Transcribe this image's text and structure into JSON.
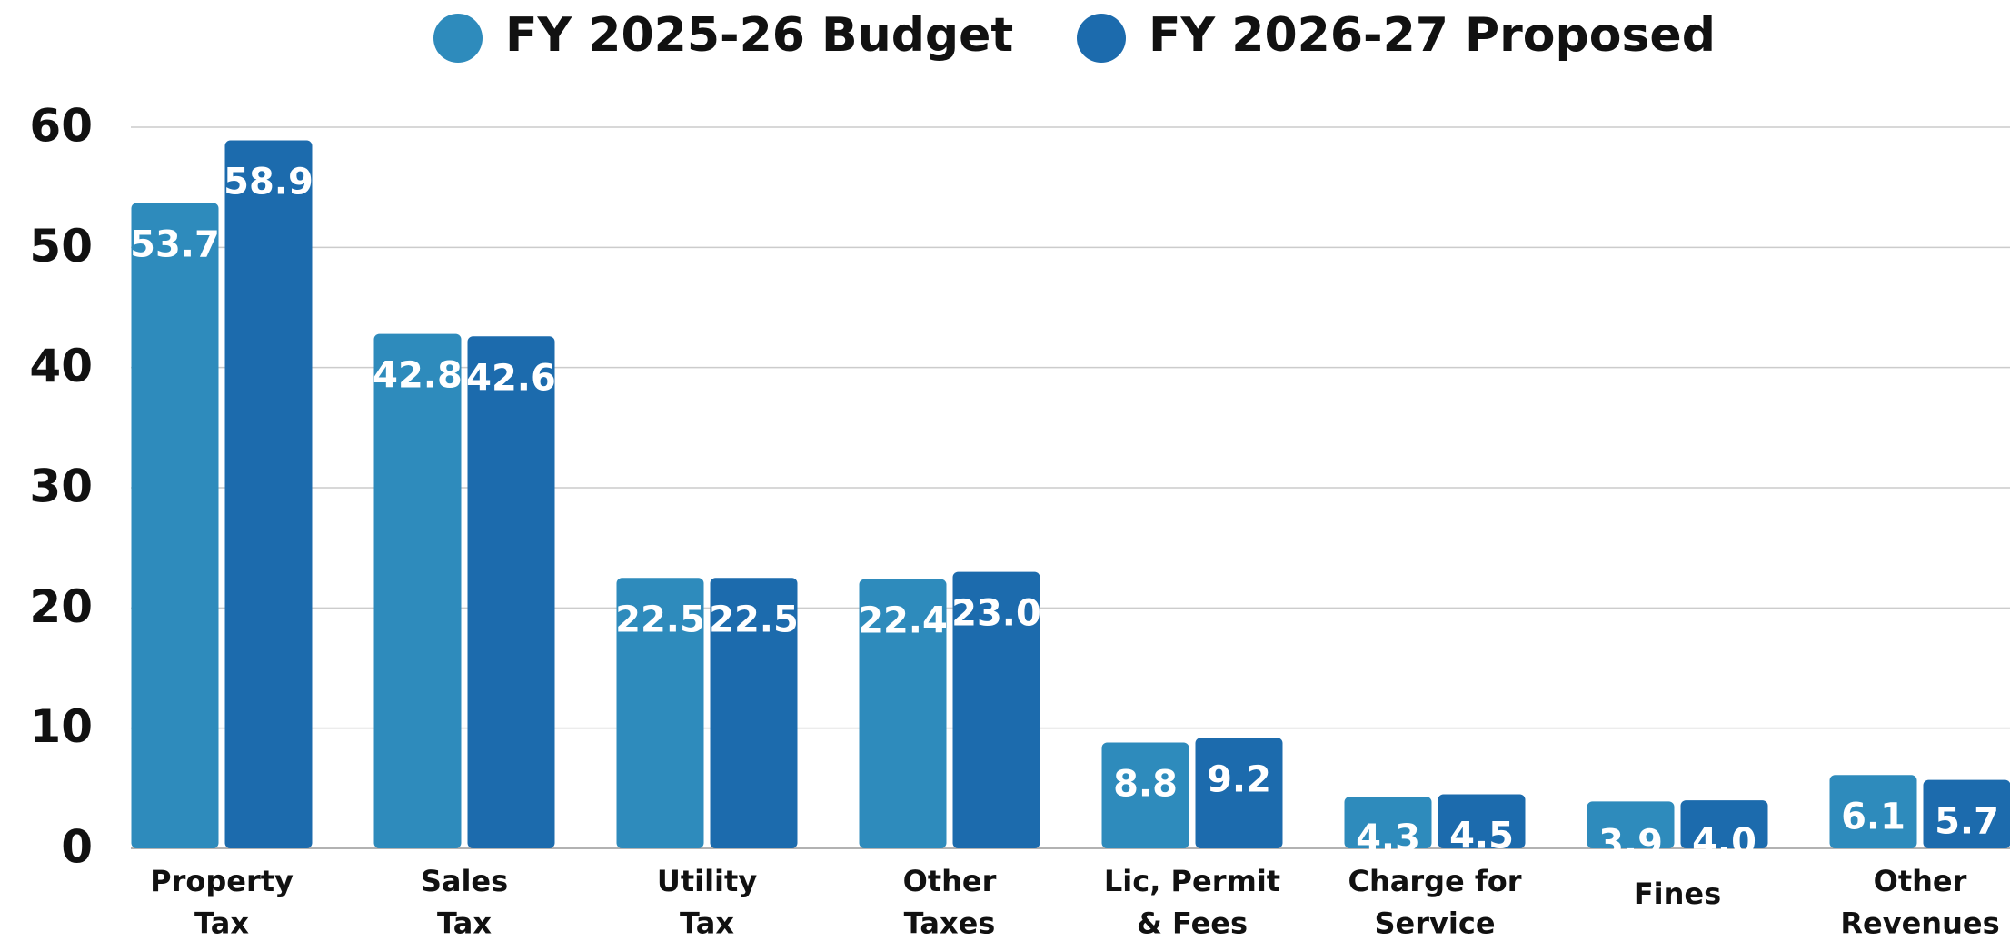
{
  "chart_data": {
    "type": "bar",
    "categories": [
      "Property\nTax",
      "Sales\nTax",
      "Utility\nTax",
      "Other\nTaxes",
      "Lic, Permit\n& Fees",
      "Charge for\nService",
      "Fines",
      "Other\nRevenues"
    ],
    "series": [
      {
        "name": "FY 2025-26 Budget",
        "color": "#2e8bbc",
        "values": [
          53.7,
          42.8,
          22.5,
          22.4,
          8.8,
          4.3,
          3.9,
          6.1
        ]
      },
      {
        "name": "FY 2026-27 Proposed",
        "color": "#1c6bad",
        "values": [
          58.9,
          42.6,
          22.5,
          23.0,
          9.2,
          4.5,
          4.0,
          5.7
        ],
        "value_labels": [
          "58.9",
          "42.6",
          "22.5",
          "23.0",
          "9.2",
          "4.5",
          "4.0",
          "5.7"
        ]
      }
    ],
    "ylim": [
      0,
      60
    ],
    "yticks": [
      0,
      10,
      20,
      30,
      40,
      50,
      60
    ],
    "grid": true,
    "legend": "top"
  }
}
